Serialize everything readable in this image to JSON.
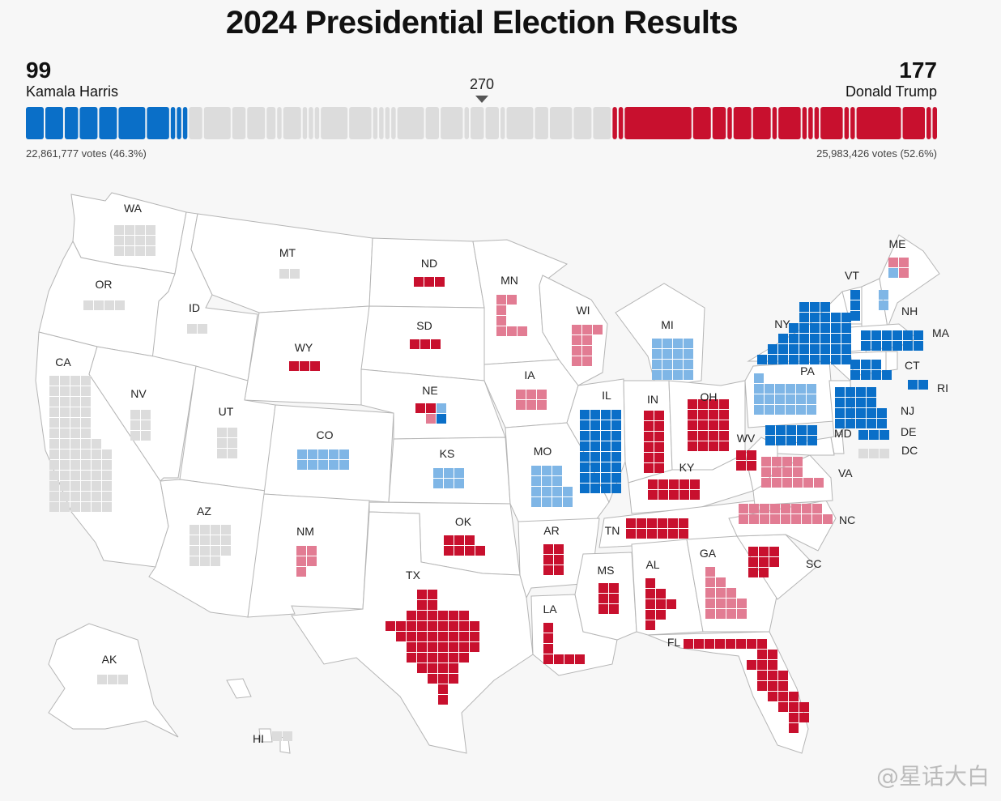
{
  "title": "2024 Presidential Election Results",
  "harris": {
    "name": "Kamala Harris",
    "ev": "99",
    "votes": "22,861,777 votes (46.3%)"
  },
  "trump": {
    "name": "Donald Trump",
    "ev": "177",
    "votes": "25,983,426 votes (52.6%)"
  },
  "threshold": "270",
  "watermark": "@星话大白",
  "colors": {
    "dem": "#0a6fc8",
    "lean_dem": "#7fb6e6",
    "rep": "#c8102e",
    "lean_rep": "#e27c93",
    "undecided": "#dcdcdc",
    "map_fill": "#ffffff",
    "map_stroke": "#b5b5b5"
  },
  "bar_segments": [
    {
      "status": "dem",
      "ev": 4
    },
    {
      "status": "dem",
      "ev": 4
    },
    {
      "status": "dem",
      "ev": 3
    },
    {
      "status": "dem",
      "ev": 4
    },
    {
      "status": "dem",
      "ev": 4
    },
    {
      "status": "dem",
      "ev": 6
    },
    {
      "status": "dem",
      "ev": 5
    },
    {
      "status": "dem",
      "ev": 1
    },
    {
      "status": "dem",
      "ev": 1
    },
    {
      "status": "dem",
      "ev": 1
    },
    {
      "status": "undecided",
      "ev": 3
    },
    {
      "status": "undecided",
      "ev": 6
    },
    {
      "status": "undecided",
      "ev": 3
    },
    {
      "status": "undecided",
      "ev": 4
    },
    {
      "status": "undecided",
      "ev": 2
    },
    {
      "status": "undecided",
      "ev": 1
    },
    {
      "status": "undecided",
      "ev": 4
    },
    {
      "status": "undecided",
      "ev": 1
    },
    {
      "status": "undecided",
      "ev": 1
    },
    {
      "status": "undecided",
      "ev": 1
    },
    {
      "status": "undecided",
      "ev": 6
    },
    {
      "status": "undecided",
      "ev": 5
    },
    {
      "status": "undecided",
      "ev": 1
    },
    {
      "status": "undecided",
      "ev": 1
    },
    {
      "status": "undecided",
      "ev": 1
    },
    {
      "status": "undecided",
      "ev": 1
    },
    {
      "status": "undecided",
      "ev": 6
    },
    {
      "status": "undecided",
      "ev": 3
    },
    {
      "status": "undecided",
      "ev": 5
    },
    {
      "status": "undecided",
      "ev": 1
    },
    {
      "status": "undecided",
      "ev": 3
    },
    {
      "status": "undecided",
      "ev": 3
    },
    {
      "status": "undecided",
      "ev": 1
    },
    {
      "status": "undecided",
      "ev": 6
    },
    {
      "status": "undecided",
      "ev": 3
    },
    {
      "status": "undecided",
      "ev": 5
    },
    {
      "status": "undecided",
      "ev": 4
    },
    {
      "status": "undecided",
      "ev": 4
    },
    {
      "status": "rep",
      "ev": 1
    },
    {
      "status": "rep",
      "ev": 1
    },
    {
      "status": "rep",
      "ev": 15
    },
    {
      "status": "rep",
      "ev": 4
    },
    {
      "status": "rep",
      "ev": 3
    },
    {
      "status": "rep",
      "ev": 1
    },
    {
      "status": "rep",
      "ev": 4
    },
    {
      "status": "rep",
      "ev": 4
    },
    {
      "status": "rep",
      "ev": 1
    },
    {
      "status": "rep",
      "ev": 5
    },
    {
      "status": "rep",
      "ev": 1
    },
    {
      "status": "rep",
      "ev": 1
    },
    {
      "status": "rep",
      "ev": 1
    },
    {
      "status": "rep",
      "ev": 5
    },
    {
      "status": "rep",
      "ev": 1
    },
    {
      "status": "rep",
      "ev": 1
    },
    {
      "status": "rep",
      "ev": 10
    },
    {
      "status": "rep",
      "ev": 5
    },
    {
      "status": "rep",
      "ev": 1
    },
    {
      "status": "rep",
      "ev": 1
    }
  ],
  "states": [
    {
      "abbr": "WA",
      "status": "undecided",
      "cells": [
        [
          4,
          4
        ],
        [
          4,
          4
        ],
        [
          4,
          4
        ]
      ]
    },
    {
      "abbr": "OR",
      "status": "undecided",
      "cells": [
        [
          4,
          4
        ]
      ]
    },
    {
      "abbr": "CA",
      "status": "undecided",
      "cells": [
        [
          0,
          4
        ],
        [
          0,
          4
        ],
        [
          0,
          4
        ],
        [
          0,
          4
        ],
        [
          0,
          4
        ],
        [
          0,
          4
        ],
        [
          0,
          5
        ],
        [
          0,
          6
        ],
        [
          1,
          6
        ],
        [
          2,
          6
        ],
        [
          2,
          6
        ],
        [
          3,
          6
        ],
        [
          4,
          6
        ]
      ]
    },
    {
      "abbr": "NV",
      "status": "undecided",
      "cells": [
        [
          2,
          2
        ],
        [
          2,
          2
        ],
        [
          2,
          2
        ]
      ]
    },
    {
      "abbr": "ID",
      "status": "undecided",
      "cells": [
        [
          2,
          2
        ]
      ]
    },
    {
      "abbr": "MT",
      "status": "undecided",
      "cells": [
        [
          2,
          2
        ]
      ]
    },
    {
      "abbr": "WY",
      "status": "rep",
      "cells": [
        [
          3,
          3
        ]
      ]
    },
    {
      "abbr": "UT",
      "status": "undecided",
      "cells": [
        [
          2,
          2
        ],
        [
          2,
          2
        ],
        [
          2,
          2
        ]
      ]
    },
    {
      "abbr": "AZ",
      "status": "undecided",
      "cells": [
        [
          4,
          4
        ],
        [
          4,
          4
        ],
        [
          4,
          4
        ],
        [
          1,
          3
        ]
      ]
    },
    {
      "abbr": "CO",
      "status": "lean_dem",
      "cells": [
        [
          5,
          5
        ],
        [
          5,
          5
        ]
      ]
    },
    {
      "abbr": "NM",
      "status": "lean_rep",
      "cells": [
        [
          2,
          2
        ],
        [
          2,
          2
        ],
        [
          1,
          1
        ]
      ]
    },
    {
      "abbr": "ND",
      "status": "rep",
      "cells": [
        [
          3,
          3
        ]
      ]
    },
    {
      "abbr": "SD",
      "status": "rep",
      "cells": [
        [
          3,
          3
        ]
      ]
    },
    {
      "abbr": "NE",
      "status": "mixed",
      "cells": []
    },
    {
      "abbr": "KS",
      "status": "lean_dem",
      "cells": [
        [
          3,
          3
        ],
        [
          3,
          3
        ]
      ]
    },
    {
      "abbr": "OK",
      "status": "rep",
      "cells": [
        [
          3,
          3
        ],
        [
          4,
          4
        ]
      ]
    },
    {
      "abbr": "TX",
      "status": "rep",
      "cells": []
    },
    {
      "abbr": "MN",
      "status": "lean_rep",
      "cells": [
        [
          2,
          2
        ],
        [
          1,
          1
        ],
        [
          1,
          1
        ],
        [
          3,
          3
        ]
      ]
    },
    {
      "abbr": "IA",
      "status": "lean_rep",
      "cells": [
        [
          3,
          3
        ],
        [
          3,
          3
        ]
      ]
    },
    {
      "abbr": "MO",
      "status": "lean_dem",
      "cells": [
        [
          3,
          3
        ],
        [
          3,
          3
        ],
        [
          3,
          4
        ],
        [
          0,
          4
        ]
      ]
    },
    {
      "abbr": "AR",
      "status": "rep",
      "cells": [
        [
          2,
          2
        ],
        [
          2,
          2
        ],
        [
          2,
          2
        ]
      ]
    },
    {
      "abbr": "LA",
      "status": "rep",
      "cells": [
        [
          0,
          1
        ],
        [
          0,
          1
        ],
        [
          0,
          1
        ],
        [
          0,
          4
        ]
      ]
    },
    {
      "abbr": "WI",
      "status": "lean_rep",
      "cells": [
        [
          3,
          3
        ],
        [
          2,
          2
        ],
        [
          2,
          2
        ],
        [
          2,
          2
        ]
      ]
    },
    {
      "abbr": "IL",
      "status": "dem",
      "cells": [
        [
          4,
          4
        ],
        [
          4,
          4
        ],
        [
          4,
          4
        ],
        [
          4,
          4
        ],
        [
          4,
          4
        ],
        [
          4,
          4
        ],
        [
          4,
          4
        ],
        [
          4,
          4
        ]
      ]
    },
    {
      "abbr": "MI",
      "status": "lean_dem",
      "cells": [
        [
          4,
          4
        ],
        [
          4,
          4
        ],
        [
          4,
          4
        ],
        [
          4,
          4
        ]
      ]
    },
    {
      "abbr": "IN",
      "status": "rep",
      "cells": [
        [
          2,
          2
        ],
        [
          2,
          2
        ],
        [
          2,
          2
        ],
        [
          2,
          2
        ],
        [
          2,
          2
        ],
        [
          2,
          2
        ]
      ]
    },
    {
      "abbr": "OH",
      "status": "rep",
      "cells": [
        [
          4,
          4
        ],
        [
          4,
          4
        ],
        [
          4,
          4
        ],
        [
          4,
          4
        ],
        [
          4,
          4
        ]
      ]
    },
    {
      "abbr": "KY",
      "status": "rep",
      "cells": [
        [
          3,
          5
        ],
        [
          0,
          5
        ]
      ]
    },
    {
      "abbr": "TN",
      "status": "rep",
      "cells": [
        [
          6,
          6
        ],
        [
          6,
          6
        ]
      ]
    },
    {
      "abbr": "MS",
      "status": "rep",
      "cells": [
        [
          2,
          2
        ],
        [
          2,
          2
        ],
        [
          2,
          2
        ]
      ]
    },
    {
      "abbr": "AL",
      "status": "rep",
      "cells": [
        [
          1,
          1
        ],
        [
          2,
          2
        ],
        [
          3,
          3
        ],
        [
          2,
          2
        ],
        [
          1,
          1
        ]
      ]
    },
    {
      "abbr": "GA",
      "status": "lean_rep",
      "cells": [
        [
          1,
          1
        ],
        [
          2,
          2
        ],
        [
          3,
          3
        ],
        [
          4,
          4
        ],
        [
          4,
          4
        ]
      ]
    },
    {
      "abbr": "FL",
      "status": "rep",
      "cells": []
    },
    {
      "abbr": "SC",
      "status": "rep",
      "cells": [
        [
          3,
          3
        ],
        [
          3,
          3
        ],
        [
          2,
          2
        ]
      ]
    },
    {
      "abbr": "NC",
      "status": "lean_rep",
      "cells": [
        [
          5,
          8
        ],
        [
          1,
          9
        ]
      ]
    },
    {
      "abbr": "VA",
      "status": "lean_rep",
      "cells": [
        [
          4,
          4
        ],
        [
          4,
          4
        ],
        [
          0,
          6
        ]
      ]
    },
    {
      "abbr": "WV",
      "status": "rep",
      "cells": [
        [
          2,
          2
        ],
        [
          2,
          2
        ]
      ]
    },
    {
      "abbr": "PA",
      "status": "lean_dem",
      "cells": [
        [
          1,
          1
        ],
        [
          6,
          6
        ],
        [
          6,
          6
        ],
        [
          6,
          6
        ]
      ]
    },
    {
      "abbr": "NY",
      "status": "dem",
      "cells": []
    },
    {
      "abbr": "VT",
      "status": "dem",
      "cells": [
        [
          0,
          1
        ],
        [
          0,
          1
        ],
        [
          0,
          1
        ]
      ]
    },
    {
      "abbr": "NH",
      "status": "lean_dem",
      "cells": [
        [
          1,
          1
        ],
        [
          1,
          1
        ]
      ]
    },
    {
      "abbr": "ME",
      "status": "mixed",
      "cells": []
    },
    {
      "abbr": "MA",
      "status": "dem",
      "cells": [
        [
          0,
          6
        ],
        [
          0,
          6
        ]
      ]
    },
    {
      "abbr": "CT",
      "status": "dem",
      "cells": [
        [
          0,
          3
        ],
        [
          0,
          4
        ]
      ]
    },
    {
      "abbr": "RI",
      "status": "dem",
      "cells": [
        [
          2,
          2
        ]
      ]
    },
    {
      "abbr": "NJ",
      "status": "dem",
      "cells": [
        [
          4,
          4
        ],
        [
          4,
          4
        ],
        [
          5,
          5
        ],
        [
          5,
          5
        ]
      ]
    },
    {
      "abbr": "DE",
      "status": "dem",
      "cells": [
        [
          3,
          3
        ]
      ]
    },
    {
      "abbr": "MD",
      "status": "dem",
      "cells": [
        [
          5,
          5
        ],
        [
          5,
          5
        ]
      ]
    },
    {
      "abbr": "DC",
      "status": "undecided",
      "cells": [
        [
          3,
          3
        ]
      ]
    },
    {
      "abbr": "AK",
      "status": "undecided",
      "cells": [
        [
          3,
          3
        ]
      ]
    },
    {
      "abbr": "HI",
      "status": "undecided",
      "cells": [
        [
          2,
          2
        ]
      ]
    }
  ]
}
